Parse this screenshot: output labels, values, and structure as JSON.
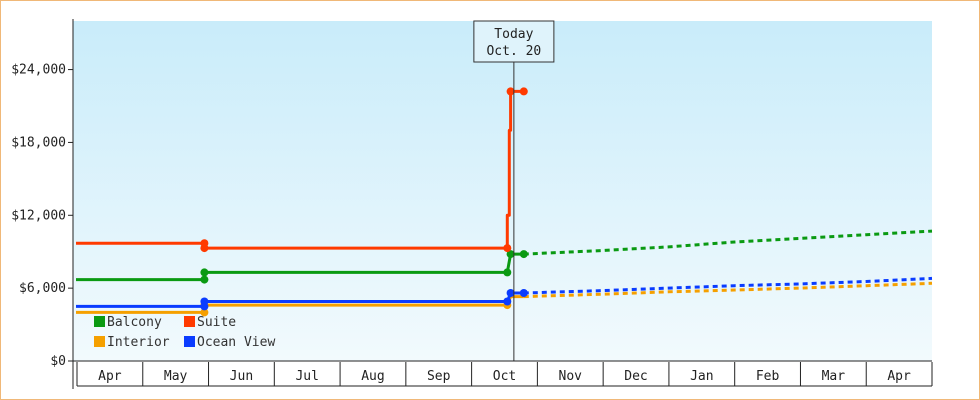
{
  "chart_data": {
    "type": "line",
    "title": "",
    "xlabel": "",
    "ylabel": "",
    "ylim": [
      0,
      28000
    ],
    "y_ticks": [
      0,
      6000,
      12000,
      18000,
      24000
    ],
    "y_tick_labels": [
      "$0",
      "$6,000",
      "$12,000",
      "$18,000",
      "$24,000"
    ],
    "x_tick_labels": [
      "Apr",
      "May",
      "Jun",
      "Jul",
      "Aug",
      "Sep",
      "Oct",
      "Nov",
      "Dec",
      "Jan",
      "Feb",
      "Mar",
      "Apr"
    ],
    "x_unit": "months since the start of April (0 = start of Apr, 13 = end of the final Apr)",
    "xlim": [
      0,
      13
    ],
    "today_marker": {
      "x": 6.65,
      "line1": "Today",
      "line2": "Oct. 20"
    },
    "grid": false,
    "legend": "bottom-left",
    "background": {
      "top": "#c9ecfa",
      "bottom": "#f2fafd"
    },
    "series": [
      {
        "name": "Balcony",
        "color": "#0a9a12",
        "actual": [
          [
            0,
            6700
          ],
          [
            1.95,
            6700
          ],
          [
            1.95,
            7300
          ],
          [
            6.55,
            7300
          ],
          [
            6.6,
            8800
          ],
          [
            6.8,
            8800
          ]
        ],
        "actual_markers": [
          [
            1.95,
            6700
          ],
          [
            1.95,
            7300
          ],
          [
            6.55,
            7300
          ],
          [
            6.6,
            8800
          ],
          [
            6.8,
            8800
          ]
        ],
        "forecast": [
          [
            6.8,
            8800
          ],
          [
            8,
            9100
          ],
          [
            9,
            9400
          ],
          [
            10,
            9800
          ],
          [
            11,
            10100
          ],
          [
            12,
            10400
          ],
          [
            13,
            10700
          ]
        ]
      },
      {
        "name": "Suite",
        "color": "#ff3a00",
        "actual": [
          [
            0,
            9700
          ],
          [
            1.95,
            9700
          ],
          [
            1.95,
            9300
          ],
          [
            6.55,
            9300
          ],
          [
            6.55,
            12000
          ],
          [
            6.58,
            12000
          ],
          [
            6.58,
            19000
          ],
          [
            6.6,
            19000
          ],
          [
            6.6,
            22200
          ],
          [
            6.8,
            22200
          ]
        ],
        "actual_markers": [
          [
            1.95,
            9700
          ],
          [
            1.95,
            9300
          ],
          [
            6.55,
            9300
          ],
          [
            6.6,
            22200
          ],
          [
            6.8,
            22200
          ]
        ],
        "forecast": []
      },
      {
        "name": "Interior",
        "color": "#f5a000",
        "actual": [
          [
            0,
            4000
          ],
          [
            1.95,
            4000
          ],
          [
            1.95,
            4600
          ],
          [
            6.55,
            4600
          ],
          [
            6.6,
            5300
          ],
          [
            6.8,
            5300
          ]
        ],
        "actual_markers": [
          [
            1.95,
            4000
          ],
          [
            1.95,
            4600
          ],
          [
            6.55,
            4600
          ]
        ],
        "forecast": [
          [
            6.8,
            5300
          ],
          [
            8,
            5500
          ],
          [
            9,
            5700
          ],
          [
            10,
            5850
          ],
          [
            11,
            6000
          ],
          [
            12,
            6200
          ],
          [
            13,
            6400
          ]
        ]
      },
      {
        "name": "Ocean View",
        "color": "#0a3cff",
        "actual": [
          [
            0,
            4500
          ],
          [
            1.95,
            4500
          ],
          [
            1.95,
            4900
          ],
          [
            6.55,
            4900
          ],
          [
            6.6,
            5600
          ],
          [
            6.8,
            5600
          ]
        ],
        "actual_markers": [
          [
            1.95,
            4500
          ],
          [
            1.95,
            4900
          ],
          [
            6.55,
            4900
          ],
          [
            6.6,
            5600
          ],
          [
            6.8,
            5600
          ]
        ],
        "forecast": [
          [
            6.8,
            5600
          ],
          [
            8,
            5800
          ],
          [
            9,
            6000
          ],
          [
            10,
            6200
          ],
          [
            11,
            6350
          ],
          [
            12,
            6550
          ],
          [
            13,
            6800
          ]
        ]
      }
    ]
  }
}
